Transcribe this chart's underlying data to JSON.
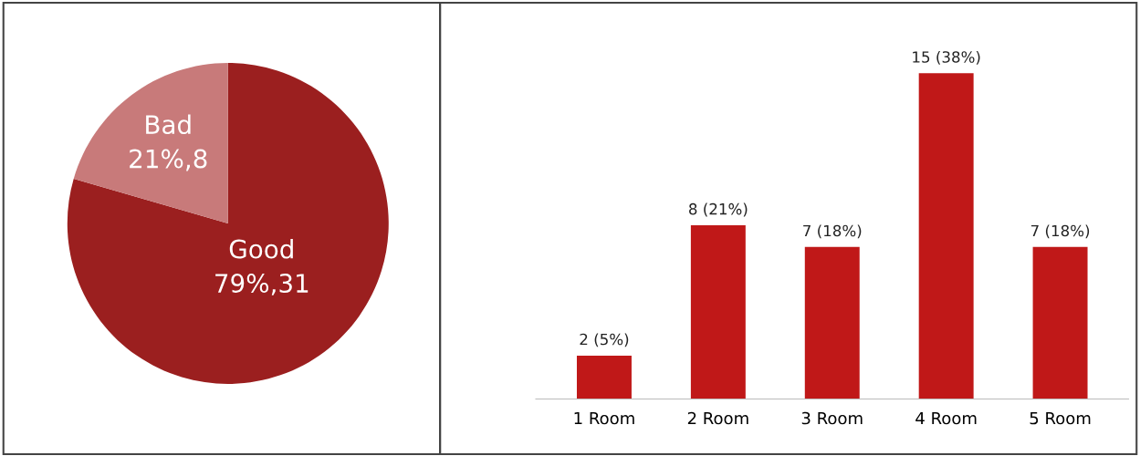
{
  "chart_data": [
    {
      "type": "pie",
      "categories": [
        "Good",
        "Bad"
      ],
      "values": [
        31,
        8
      ],
      "colors": [
        "#9b1f1f",
        "#c87a7a"
      ],
      "value_labels": [
        "79%,31",
        "21%,8"
      ]
    },
    {
      "type": "bar",
      "categories": [
        "1 Room",
        "2 Room",
        "3 Room",
        "4 Room",
        "5 Room"
      ],
      "values": [
        2,
        8,
        7,
        15,
        7
      ],
      "color": "#c01818",
      "value_labels": [
        "2 (5%)",
        "8 (21%)",
        "7 (18%)",
        "15 (38%)",
        "7 (18%)"
      ],
      "grid": false,
      "legend": false
    }
  ]
}
